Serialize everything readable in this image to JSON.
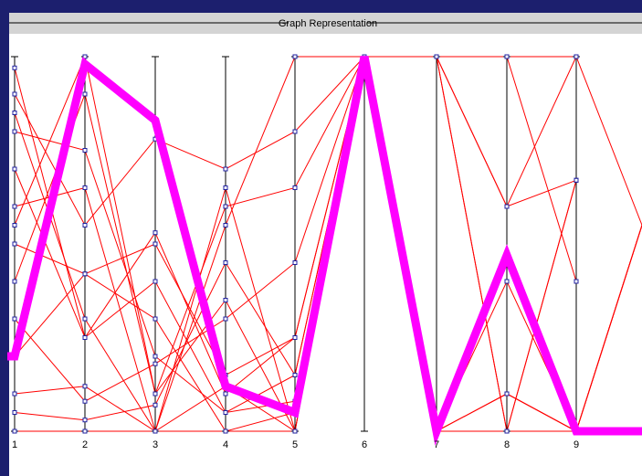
{
  "panel": {
    "title": "Graph Representation"
  },
  "colors": {
    "frame_background": "#1c1f6e",
    "header_bar": "#d4d4d4",
    "plot_background": "#ffffff",
    "axis": "#000000",
    "background_lines": "#ff0000",
    "node_marker": "#2020a0",
    "highlight": "#ff00ff"
  },
  "chart_data": {
    "type": "line",
    "subtype": "parallel-coordinates",
    "title": "Graph Representation",
    "axes": [
      "1",
      "2",
      "3",
      "4",
      "5",
      "6",
      "7",
      "8",
      "9"
    ],
    "value_range": [
      0,
      1
    ],
    "background_series": [
      [
        0.1,
        0.12,
        0.0,
        0.12,
        0.0,
        1.0,
        1.0,
        1.0,
        1.0
      ],
      [
        0.5,
        0.42,
        0.5,
        0.15,
        0.25,
        1.0,
        1.0,
        0.6,
        0.67
      ],
      [
        0.8,
        0.75,
        0.2,
        0.05,
        0.15,
        1.0,
        0.0,
        0.4,
        0.0
      ],
      [
        0.3,
        0.08,
        0.18,
        0.3,
        0.45,
        1.0,
        0.0,
        0.1,
        0.0
      ],
      [
        0.9,
        0.55,
        0.78,
        0.7,
        0.8,
        1.0,
        1.0,
        1.0,
        0.4
      ],
      [
        0.05,
        0.03,
        0.07,
        0.45,
        0.15,
        1.0,
        0.0,
        0.1,
        0.0
      ],
      [
        0.7,
        0.25,
        0.4,
        0.05,
        0.08,
        1.0,
        0.0,
        0.0,
        0.0
      ],
      [
        0.6,
        0.65,
        0.0,
        0.55,
        1.0,
        1.0,
        1.0,
        0.6,
        1.0
      ],
      [
        0.4,
        0.9,
        0.1,
        0.6,
        0.65,
        1.0,
        1.0,
        0.0,
        0.0
      ],
      [
        0.2,
        0.42,
        0.3,
        0.0,
        0.05,
        0.97,
        0.0,
        0.0,
        0.0
      ],
      [
        0.0,
        0.0,
        0.0,
        0.0,
        0.0,
        1.0,
        0.0,
        0.0,
        0.0
      ],
      [
        0.97,
        0.25,
        0.53,
        0.1,
        0.25,
        1.0,
        0.0,
        0.0,
        0.67
      ],
      [
        0.55,
        1.0,
        0.1,
        0.35,
        0.0,
        1.0,
        1.0,
        0.0,
        0.0
      ],
      [
        0.85,
        0.3,
        0.0,
        0.65,
        0.0,
        1.0,
        0.0,
        0.0,
        0.67
      ]
    ],
    "highlighted_series": [
      0.2,
      0.98,
      0.83,
      0.12,
      0.05,
      1.0,
      0.0,
      0.47,
      0.0
    ],
    "highlight_tail_value": 0.0,
    "grid": false,
    "legend": "none"
  }
}
